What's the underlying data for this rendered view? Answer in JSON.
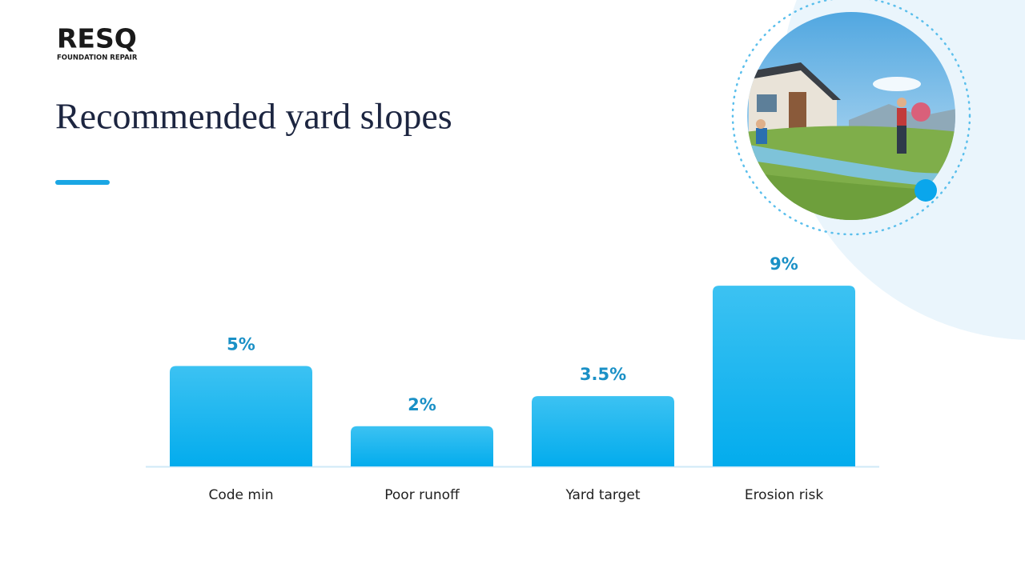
{
  "logo": {
    "name": "RESQ",
    "tagline": "FOUNDATION REPAIR"
  },
  "chart_data": {
    "type": "bar",
    "title": "Recommended yard slopes",
    "categories": [
      "Code min",
      "Poor runoff",
      "Yard target",
      "Erosion risk"
    ],
    "values": [
      5,
      2,
      3.5,
      9
    ],
    "value_labels": [
      "5%",
      "2%",
      "3.5%",
      "9%"
    ],
    "color": "#1cb4ef"
  }
}
